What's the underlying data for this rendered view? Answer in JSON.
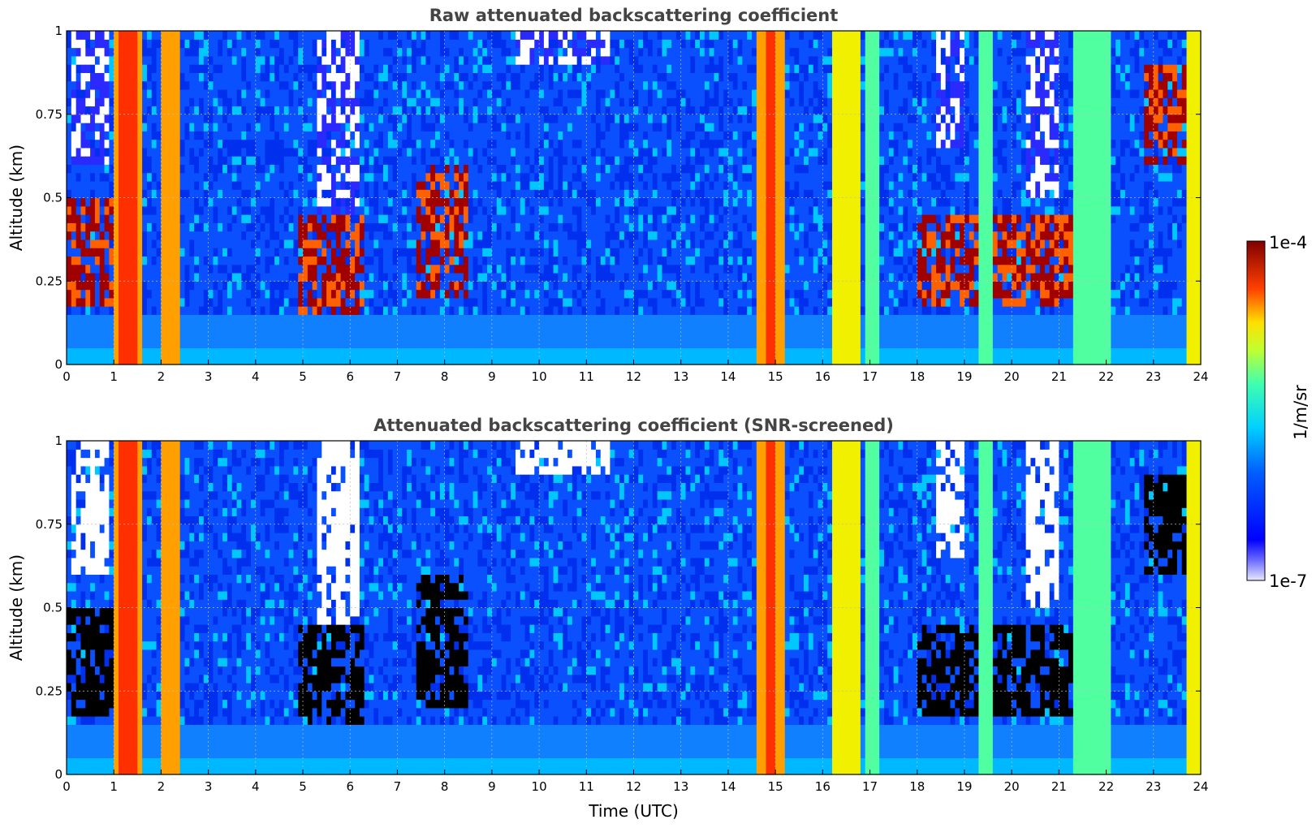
{
  "chart_data": [
    {
      "type": "heatmap",
      "title": "Raw attenuated backscattering coefficient",
      "xlabel": "",
      "ylabel": "Altitude (km)",
      "xlim": [
        0,
        24
      ],
      "ylim": [
        0,
        1
      ],
      "x_ticks": [
        "0",
        "1",
        "2",
        "3",
        "4",
        "5",
        "6",
        "7",
        "8",
        "9",
        "10",
        "11",
        "12",
        "13",
        "14",
        "15",
        "16",
        "17",
        "18",
        "19",
        "20",
        "21",
        "22",
        "23",
        "24"
      ],
      "y_ticks": [
        "0",
        "0.25",
        "0.5",
        "0.75",
        "1"
      ],
      "grid": true
    },
    {
      "type": "heatmap",
      "title": "Attenuated backscattering coefficient (SNR-screened)",
      "xlabel": "Time (UTC)",
      "ylabel": "Altitude (km)",
      "xlim": [
        0,
        24
      ],
      "ylim": [
        0,
        1
      ],
      "x_ticks": [
        "0",
        "1",
        "2",
        "3",
        "4",
        "5",
        "6",
        "7",
        "8",
        "9",
        "10",
        "11",
        "12",
        "13",
        "14",
        "15",
        "16",
        "17",
        "18",
        "19",
        "20",
        "21",
        "22",
        "23",
        "24"
      ],
      "y_ticks": [
        "0",
        "0.25",
        "0.5",
        "0.75",
        "1"
      ],
      "grid": true
    }
  ],
  "colorbar": {
    "max_label": "1e-4",
    "min_label": "1e-7",
    "unit": "1/m/sr",
    "colormap": "jet",
    "scale": "log"
  }
}
